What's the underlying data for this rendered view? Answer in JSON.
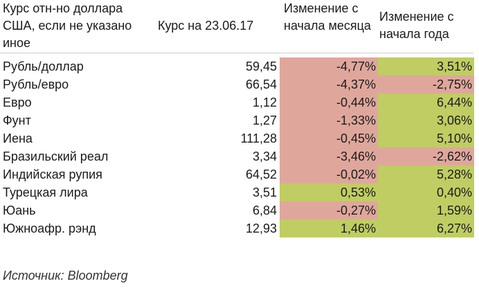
{
  "header": {
    "name_col": "Курс отн-но доллара США, если не указано иное",
    "rate_col": "Курс на 23.06.17",
    "month_col": "Изменение с начала месяца",
    "year_col": "Изменение с начала года"
  },
  "colors": {
    "negative": "#dfa79c",
    "positive": "#c0cd62"
  },
  "rows": [
    {
      "name": "Рубль/доллар",
      "rate": "59,45",
      "month": "-4,77%",
      "month_sign": "neg",
      "year": "3,51%",
      "year_sign": "pos"
    },
    {
      "name": "Рубль/евро",
      "rate": "66,54",
      "month": "-4,37%",
      "month_sign": "neg",
      "year": "-2,75%",
      "year_sign": "neg"
    },
    {
      "name": "Евро",
      "rate": "1,12",
      "month": "-0,44%",
      "month_sign": "neg",
      "year": "6,44%",
      "year_sign": "pos"
    },
    {
      "name": "Фунт",
      "rate": "1,27",
      "month": "-1,33%",
      "month_sign": "neg",
      "year": "3,06%",
      "year_sign": "pos"
    },
    {
      "name": "Иена",
      "rate": "111,28",
      "month": "-0,45%",
      "month_sign": "neg",
      "year": "5,10%",
      "year_sign": "pos"
    },
    {
      "name": "Бразильский реал",
      "rate": "3,34",
      "month": "-3,46%",
      "month_sign": "neg",
      "year": "-2,62%",
      "year_sign": "neg"
    },
    {
      "name": "Индийская рупия",
      "rate": "64,52",
      "month": "-0,02%",
      "month_sign": "neg",
      "year": "5,28%",
      "year_sign": "pos"
    },
    {
      "name": "Турецкая лира",
      "rate": "3,51",
      "month": "0,53%",
      "month_sign": "pos",
      "year": "0,40%",
      "year_sign": "pos"
    },
    {
      "name": "Юань",
      "rate": "6,84",
      "month": "-0,27%",
      "month_sign": "neg",
      "year": "1,59%",
      "year_sign": "pos"
    },
    {
      "name": "Южноафр. рэнд",
      "rate": "12,93",
      "month": "1,46%",
      "month_sign": "pos",
      "year": "6,27%",
      "year_sign": "pos"
    }
  ],
  "source": "Источник: Bloomberg"
}
